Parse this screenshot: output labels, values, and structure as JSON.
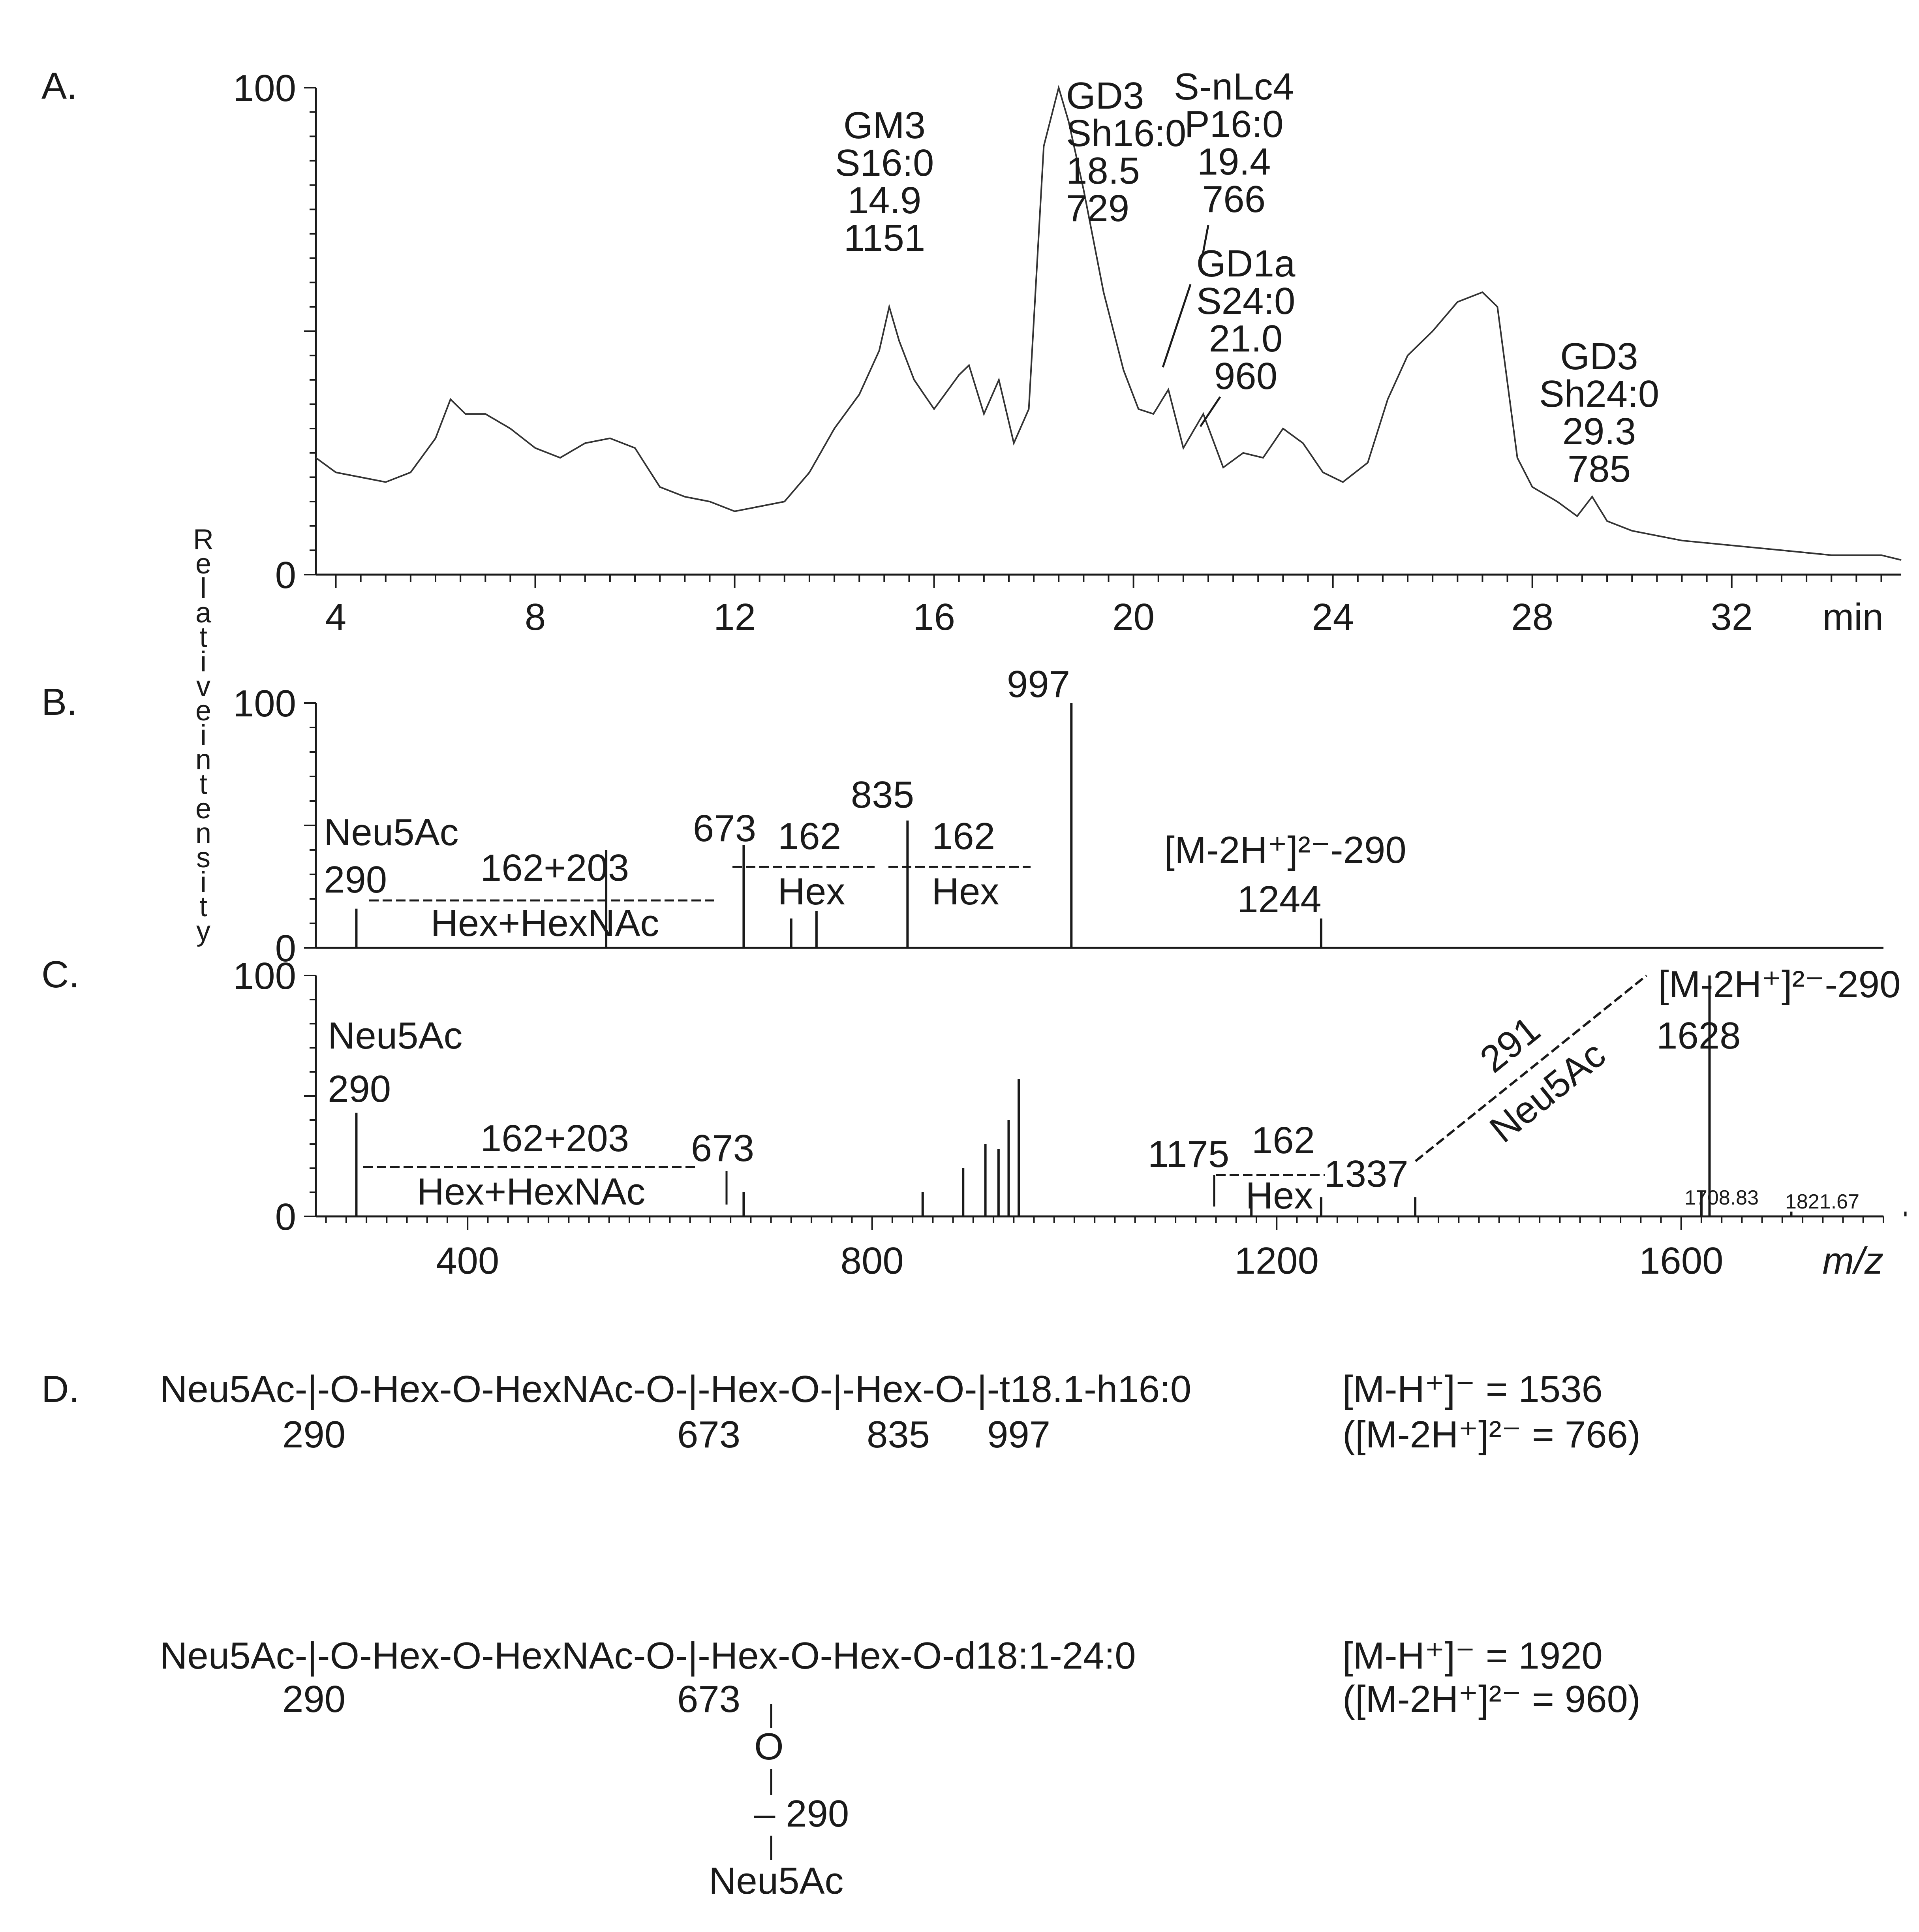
{
  "panel_labels": {
    "a": "A.",
    "b": "B.",
    "c": "C.",
    "d": "D."
  },
  "y_axis_label": "Relative intensity",
  "chart_data": [
    {
      "type": "line",
      "panel": "A.",
      "xlabel": "min",
      "xlim": [
        3.6,
        35.4
      ],
      "ylim": [
        0,
        100
      ],
      "x_ticks": [
        4,
        8,
        12,
        16,
        20,
        24,
        28,
        32
      ],
      "y_ticks": [
        0,
        100
      ],
      "series": [
        {
          "points": [
            [
              3.6,
              24
            ],
            [
              4.0,
              21
            ],
            [
              4.5,
              20
            ],
            [
              5.0,
              19
            ],
            [
              5.5,
              21
            ],
            [
              6.0,
              28
            ],
            [
              6.3,
              36
            ],
            [
              6.6,
              33
            ],
            [
              7.0,
              33
            ],
            [
              7.5,
              30
            ],
            [
              8.0,
              26
            ],
            [
              8.5,
              24
            ],
            [
              9.0,
              27
            ],
            [
              9.5,
              28
            ],
            [
              10.0,
              26
            ],
            [
              10.5,
              18
            ],
            [
              11.0,
              16
            ],
            [
              11.5,
              15
            ],
            [
              12.0,
              13
            ],
            [
              12.5,
              14
            ],
            [
              13.0,
              15
            ],
            [
              13.5,
              21
            ],
            [
              14.0,
              30
            ],
            [
              14.5,
              37
            ],
            [
              14.9,
              46
            ],
            [
              15.1,
              55
            ],
            [
              15.3,
              48
            ],
            [
              15.6,
              40
            ],
            [
              16.0,
              34
            ],
            [
              16.5,
              41
            ],
            [
              16.7,
              43
            ],
            [
              17.0,
              33
            ],
            [
              17.3,
              40
            ],
            [
              17.6,
              27
            ],
            [
              17.9,
              34
            ],
            [
              18.2,
              88
            ],
            [
              18.5,
              100
            ],
            [
              18.7,
              93
            ],
            [
              19.0,
              79
            ],
            [
              19.4,
              58
            ],
            [
              19.8,
              42
            ],
            [
              20.1,
              34
            ],
            [
              20.4,
              33
            ],
            [
              20.7,
              38
            ],
            [
              21.0,
              26
            ],
            [
              21.4,
              33
            ],
            [
              21.8,
              22
            ],
            [
              22.2,
              25
            ],
            [
              22.6,
              24
            ],
            [
              23.0,
              30
            ],
            [
              23.4,
              27
            ],
            [
              23.8,
              21
            ],
            [
              24.2,
              19
            ],
            [
              24.7,
              23
            ],
            [
              25.1,
              36
            ],
            [
              25.5,
              45
            ],
            [
              26.0,
              50
            ],
            [
              26.5,
              56
            ],
            [
              27.0,
              58
            ],
            [
              27.3,
              55
            ],
            [
              27.7,
              24
            ],
            [
              28.0,
              18
            ],
            [
              28.5,
              15
            ],
            [
              28.9,
              12
            ],
            [
              29.2,
              16
            ],
            [
              29.5,
              11
            ],
            [
              30.0,
              9
            ],
            [
              31.0,
              7
            ],
            [
              32.0,
              6
            ],
            [
              33.0,
              5
            ],
            [
              34.0,
              4
            ],
            [
              35.0,
              4
            ],
            [
              35.4,
              3
            ]
          ]
        }
      ],
      "annotations": [
        {
          "lines": [
            "GM3",
            "S16:0",
            "14.9",
            "1151"
          ]
        },
        {
          "lines": [
            "GD3",
            "Sh16:0",
            "18.5",
            "729"
          ]
        },
        {
          "lines": [
            "S-nLc4",
            "P16:0",
            "19.4",
            "766"
          ]
        },
        {
          "lines": [
            "GD1a",
            "S24:0",
            "21.0",
            "960"
          ]
        },
        {
          "lines": [
            "GD3",
            "Sh24:0",
            "29.3",
            "785"
          ]
        }
      ]
    },
    {
      "type": "bar",
      "panel": "B.",
      "xlim": [
        250,
        1800
      ],
      "ylim": [
        0,
        100
      ],
      "y_ticks": [
        0,
        100
      ],
      "peaks": [
        [
          290,
          16
        ],
        [
          537,
          40
        ],
        [
          673,
          42
        ],
        [
          720,
          12
        ],
        [
          745,
          15
        ],
        [
          835,
          52
        ],
        [
          997,
          100
        ],
        [
          1244,
          12
        ]
      ],
      "annotations": [
        {
          "lines": [
            "Neu5Ac",
            "290"
          ]
        },
        {
          "top": "162+203",
          "bottom": "Hex+HexNAc"
        },
        {
          "text": "673"
        },
        {
          "top": "162",
          "bottom": "Hex",
          "index": 1
        },
        {
          "text": "835"
        },
        {
          "top": "162",
          "bottom": "Hex",
          "index": 2
        },
        {
          "text": "997"
        },
        {
          "lines": [
            "[M-2H⁺]²⁻-290",
            "1244"
          ]
        }
      ]
    },
    {
      "type": "bar",
      "panel": "C.",
      "xlabel": "m/z",
      "xlim": [
        250,
        1800
      ],
      "ylim": [
        0,
        100
      ],
      "x_ticks": [
        400,
        800,
        1200,
        1600
      ],
      "y_ticks": [
        0,
        100
      ],
      "peaks": [
        [
          290,
          43
        ],
        [
          673,
          10
        ],
        [
          850,
          10
        ],
        [
          890,
          20
        ],
        [
          912,
          30
        ],
        [
          925,
          28
        ],
        [
          935,
          40
        ],
        [
          945,
          57
        ],
        [
          1175,
          8
        ],
        [
          1244,
          8
        ],
        [
          1337,
          8
        ],
        [
          1620,
          10
        ],
        [
          1628,
          100
        ],
        [
          1708.83,
          2
        ],
        [
          1821.67,
          2
        ]
      ],
      "annotations": [
        {
          "lines": [
            "Neu5Ac",
            "290"
          ]
        },
        {
          "top": "162+203",
          "bottom": "Hex+HexNAc"
        },
        {
          "text": "673"
        },
        {
          "text": "1175"
        },
        {
          "top": "162",
          "bottom": "Hex"
        },
        {
          "text": "1337"
        },
        {
          "top": "291",
          "bottom": "Neu5Ac"
        },
        {
          "lines": [
            "[M-2H⁺]²⁻-290",
            "1628"
          ]
        },
        {
          "text": "1708.83"
        },
        {
          "text": "1821.67"
        }
      ]
    }
  ],
  "structures": {
    "s1": {
      "formula": "Neu5Ac-|-O-Hex-O-HexNAc-O-|-Hex-O-|-Hex-O-|-t18.1-h16:0",
      "frag_290": "290",
      "frag_673": "673",
      "frag_835": "835",
      "frag_997": "997",
      "mass_line1": "[M-H⁺]⁻ = 1536",
      "mass_line2": "([M-2H⁺]²⁻ = 766)"
    },
    "s2": {
      "formula": "Neu5Ac-|-O-Hex-O-HexNAc-O-|-Hex-O-Hex-O-d18:1-24:0",
      "frag_290": "290",
      "frag_673": "673",
      "branch_o": "O",
      "branch_290": "– 290",
      "branch_neu5ac": "Neu5Ac",
      "mass_line1": "[M-H⁺]⁻ = 1920",
      "mass_line2": "([M-2H⁺]²⁻ = 960)"
    }
  }
}
